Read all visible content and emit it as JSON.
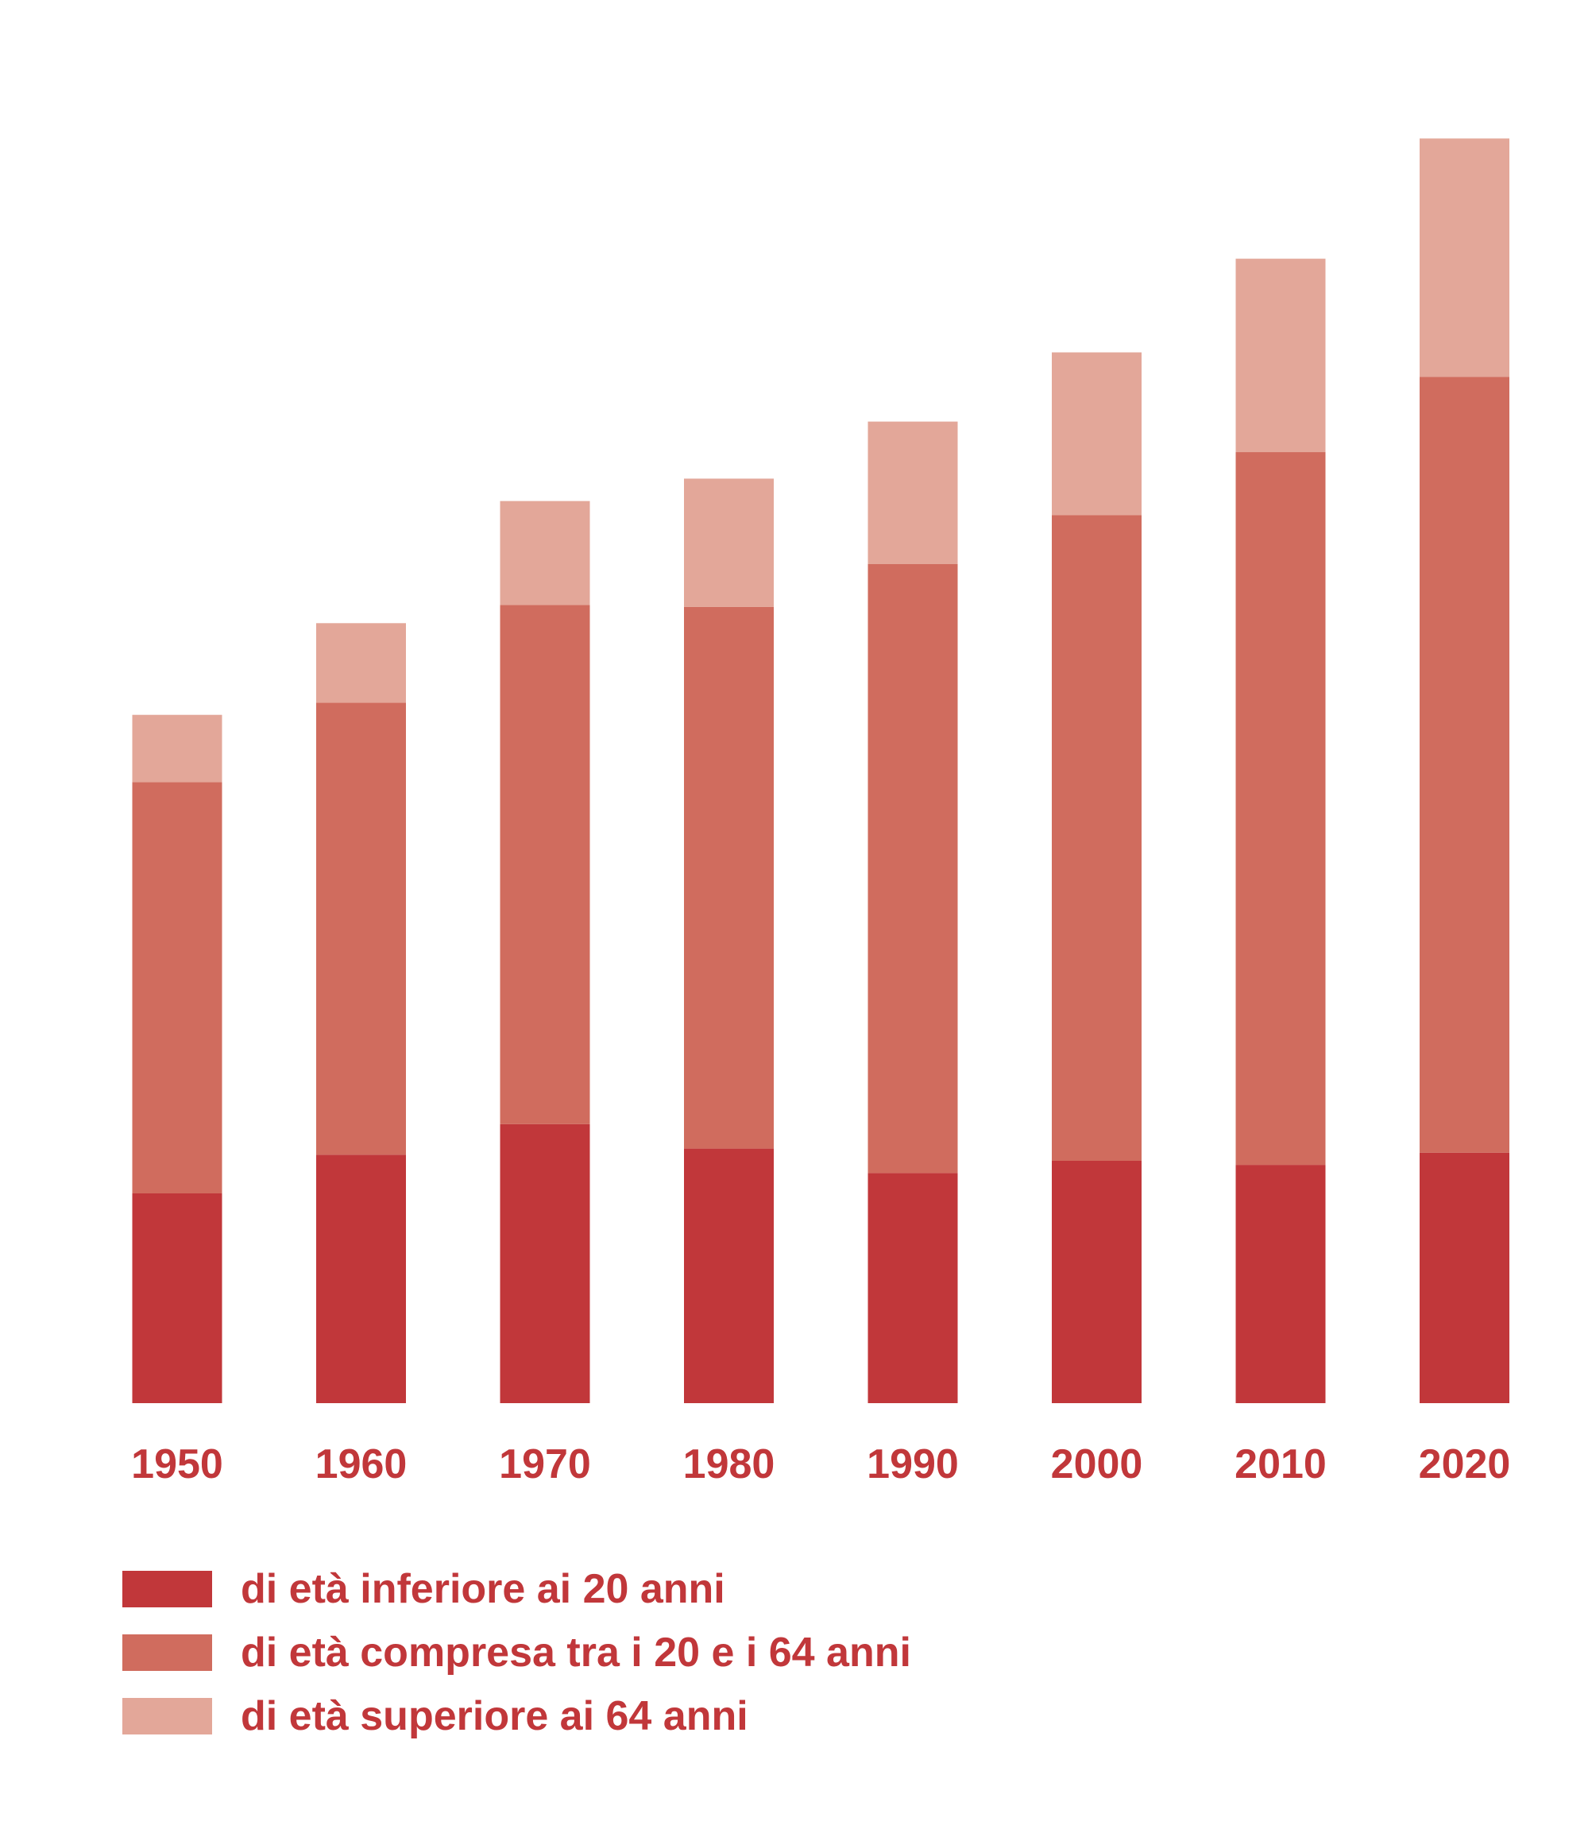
{
  "chart_data": {
    "type": "bar",
    "stacked": true,
    "categories": [
      "1950",
      "1960",
      "1970",
      "1980",
      "1990",
      "2000",
      "2010",
      "2020"
    ],
    "series": [
      {
        "name": "di età inferiore ai 20 anni",
        "color": "#C1373A",
        "values": [
          1.03,
          1.22,
          1.37,
          1.25,
          1.13,
          1.19,
          1.17,
          1.23
        ]
      },
      {
        "name": "di età compresa tra i 20 e i 64 anni",
        "color": "#D06C5E",
        "values": [
          2.02,
          2.22,
          2.55,
          2.66,
          2.99,
          3.17,
          3.5,
          3.81
        ]
      },
      {
        "name": "di età superiore ai 64 anni",
        "color": "#E3A799",
        "values": [
          0.33,
          0.39,
          0.51,
          0.63,
          0.7,
          0.8,
          0.95,
          1.17
        ]
      }
    ],
    "ylim": [
      0,
      6.5
    ],
    "grid": false,
    "legend_position": "bottom-left",
    "title": "",
    "xlabel": "",
    "ylabel": ""
  }
}
